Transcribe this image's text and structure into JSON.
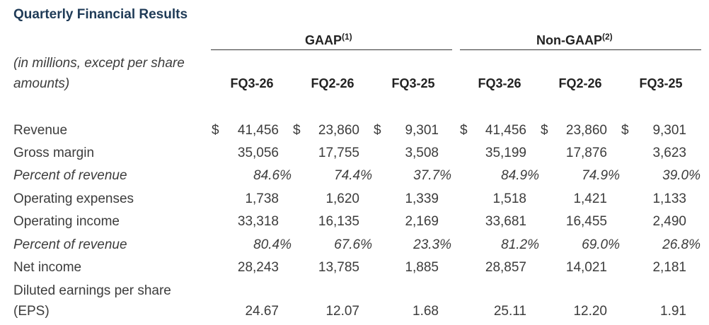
{
  "title": "Quarterly Financial Results",
  "groups": {
    "gaap": {
      "label": "GAAP",
      "sup": "(1)"
    },
    "nongaap": {
      "label": "Non-GAAP",
      "sup": "(2)"
    }
  },
  "subtitle_line1": "(in millions, except per share",
  "subtitle_line2": "amounts)",
  "columns": [
    "FQ3-26",
    "FQ2-26",
    "FQ3-25",
    "FQ3-26",
    "FQ2-26",
    "FQ3-25"
  ],
  "currency_symbol": "$",
  "rows": [
    {
      "label": "Revenue",
      "italic": false,
      "values": [
        "41,456",
        "23,860",
        "9,301",
        "41,456",
        "23,860",
        "9,301"
      ]
    },
    {
      "label": "Gross margin",
      "italic": false,
      "values": [
        "35,056",
        "17,755",
        "3,508",
        "35,199",
        "17,876",
        "3,623"
      ]
    },
    {
      "label": "Percent of revenue",
      "italic": true,
      "values": [
        "84.6%",
        "74.4%",
        "37.7%",
        "84.9%",
        "74.9%",
        "39.0%"
      ]
    },
    {
      "label": "Operating expenses",
      "italic": false,
      "values": [
        "1,738",
        "1,620",
        "1,339",
        "1,518",
        "1,421",
        "1,133"
      ]
    },
    {
      "label": "Operating income",
      "italic": false,
      "values": [
        "33,318",
        "16,135",
        "2,169",
        "33,681",
        "16,455",
        "2,490"
      ]
    },
    {
      "label": "Percent of revenue",
      "italic": true,
      "values": [
        "80.4%",
        "67.6%",
        "23.3%",
        "81.2%",
        "69.0%",
        "26.8%"
      ]
    },
    {
      "label": "Net income",
      "italic": false,
      "values": [
        "28,243",
        "13,785",
        "1,885",
        "28,857",
        "14,021",
        "2,181"
      ]
    }
  ],
  "eps_row": {
    "label_line1": "Diluted earnings per share",
    "label_line2": "(EPS)",
    "values": [
      "24.67",
      "12.07",
      "1.68",
      "25.11",
      "12.20",
      "1.91"
    ]
  }
}
